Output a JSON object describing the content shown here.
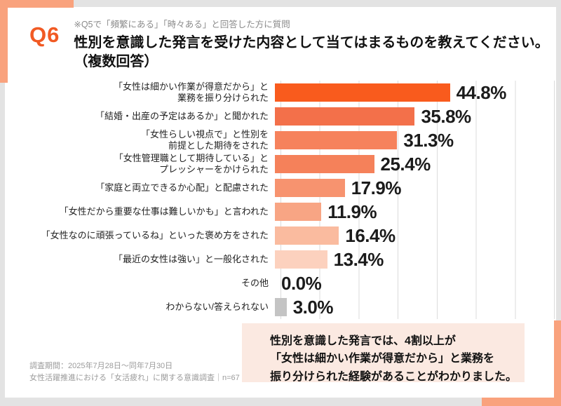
{
  "header": {
    "q_label": "Q6",
    "note": "※Q5で「頻繁にある」「時々ある」と回答した方に質問",
    "title_line1": "性別を意識した発言を受けた内容として当てはまるものを教えてください。",
    "title_line2": "（複数回答）"
  },
  "chart_data": {
    "type": "bar",
    "orientation": "horizontal",
    "unit": "%",
    "xlim": [
      0,
      70
    ],
    "gridline_interval": 10,
    "grid": true,
    "legend": false,
    "categories": [
      "「女性は細かい作業が得意だから」と業務を振り分けられた",
      "「結婚・出産の予定はあるか」と聞かれた",
      "「女性らしい視点で」と性別を前提とした期待をされた",
      "「女性管理職として期待している」とプレッシャーをかけられた",
      "「家庭と両立できるか心配」と配慮された",
      "「女性だから重要な仕事は難しいかも」と言われた",
      "「女性なのに頑張っているね」といった褒め方をされた",
      "「最近の女性は強い」と一般化された",
      "その他",
      "わからない/答えられない"
    ],
    "category_display_lines": [
      [
        "「女性は細かい作業が得意だから」と",
        "業務を振り分けられた"
      ],
      [
        "「結婚・出産の予定はあるか」と聞かれた"
      ],
      [
        "「女性らしい視点で」と性別を",
        "前提とした期待をされた"
      ],
      [
        "「女性管理職として期待している」と",
        "プレッシャーをかけられた"
      ],
      [
        "「家庭と両立できるか心配」と配慮された"
      ],
      [
        "「女性だから重要な仕事は難しいかも」と言われた"
      ],
      [
        "「女性なのに頑張っているね」といった褒め方をされた"
      ],
      [
        "「最近の女性は強い」と一般化された"
      ],
      [
        "その他"
      ],
      [
        "わからない/答えられない"
      ]
    ],
    "values": [
      44.8,
      35.8,
      31.3,
      25.4,
      17.9,
      11.9,
      16.4,
      13.4,
      0.0,
      3.0
    ],
    "value_labels": [
      "44.8%",
      "35.8%",
      "31.3%",
      "25.4%",
      "17.9%",
      "11.9%",
      "16.4%",
      "13.4%",
      "0.0%",
      "3.0%"
    ],
    "bar_colors": [
      "#F95B1D",
      "#F3704A",
      "#F6825C",
      "#F5815A",
      "#F7936F",
      "#F8A584",
      "#FABB9F",
      "#FCD1BE",
      "none",
      "#C4C4C4"
    ]
  },
  "callout": {
    "line1": "性別を意識した発言では、4割以上が",
    "line2": "「女性は細かい作業が得意だから」と業務を",
    "line3": "振り分けられた経験があることがわかりました。"
  },
  "footer": {
    "line1": "調査期間：2025年7月28日〜同年7月30日",
    "line2": "女性活躍推進における「女活疲れ」に関する意識調査｜n=67"
  },
  "colors": {
    "accent_orange": "#F15A24",
    "frame_salmon": "#F9A27D",
    "callout_bg": "#FBE9E1",
    "gridline": "#DBDBDB",
    "page_bg": "#E3E3E3"
  }
}
